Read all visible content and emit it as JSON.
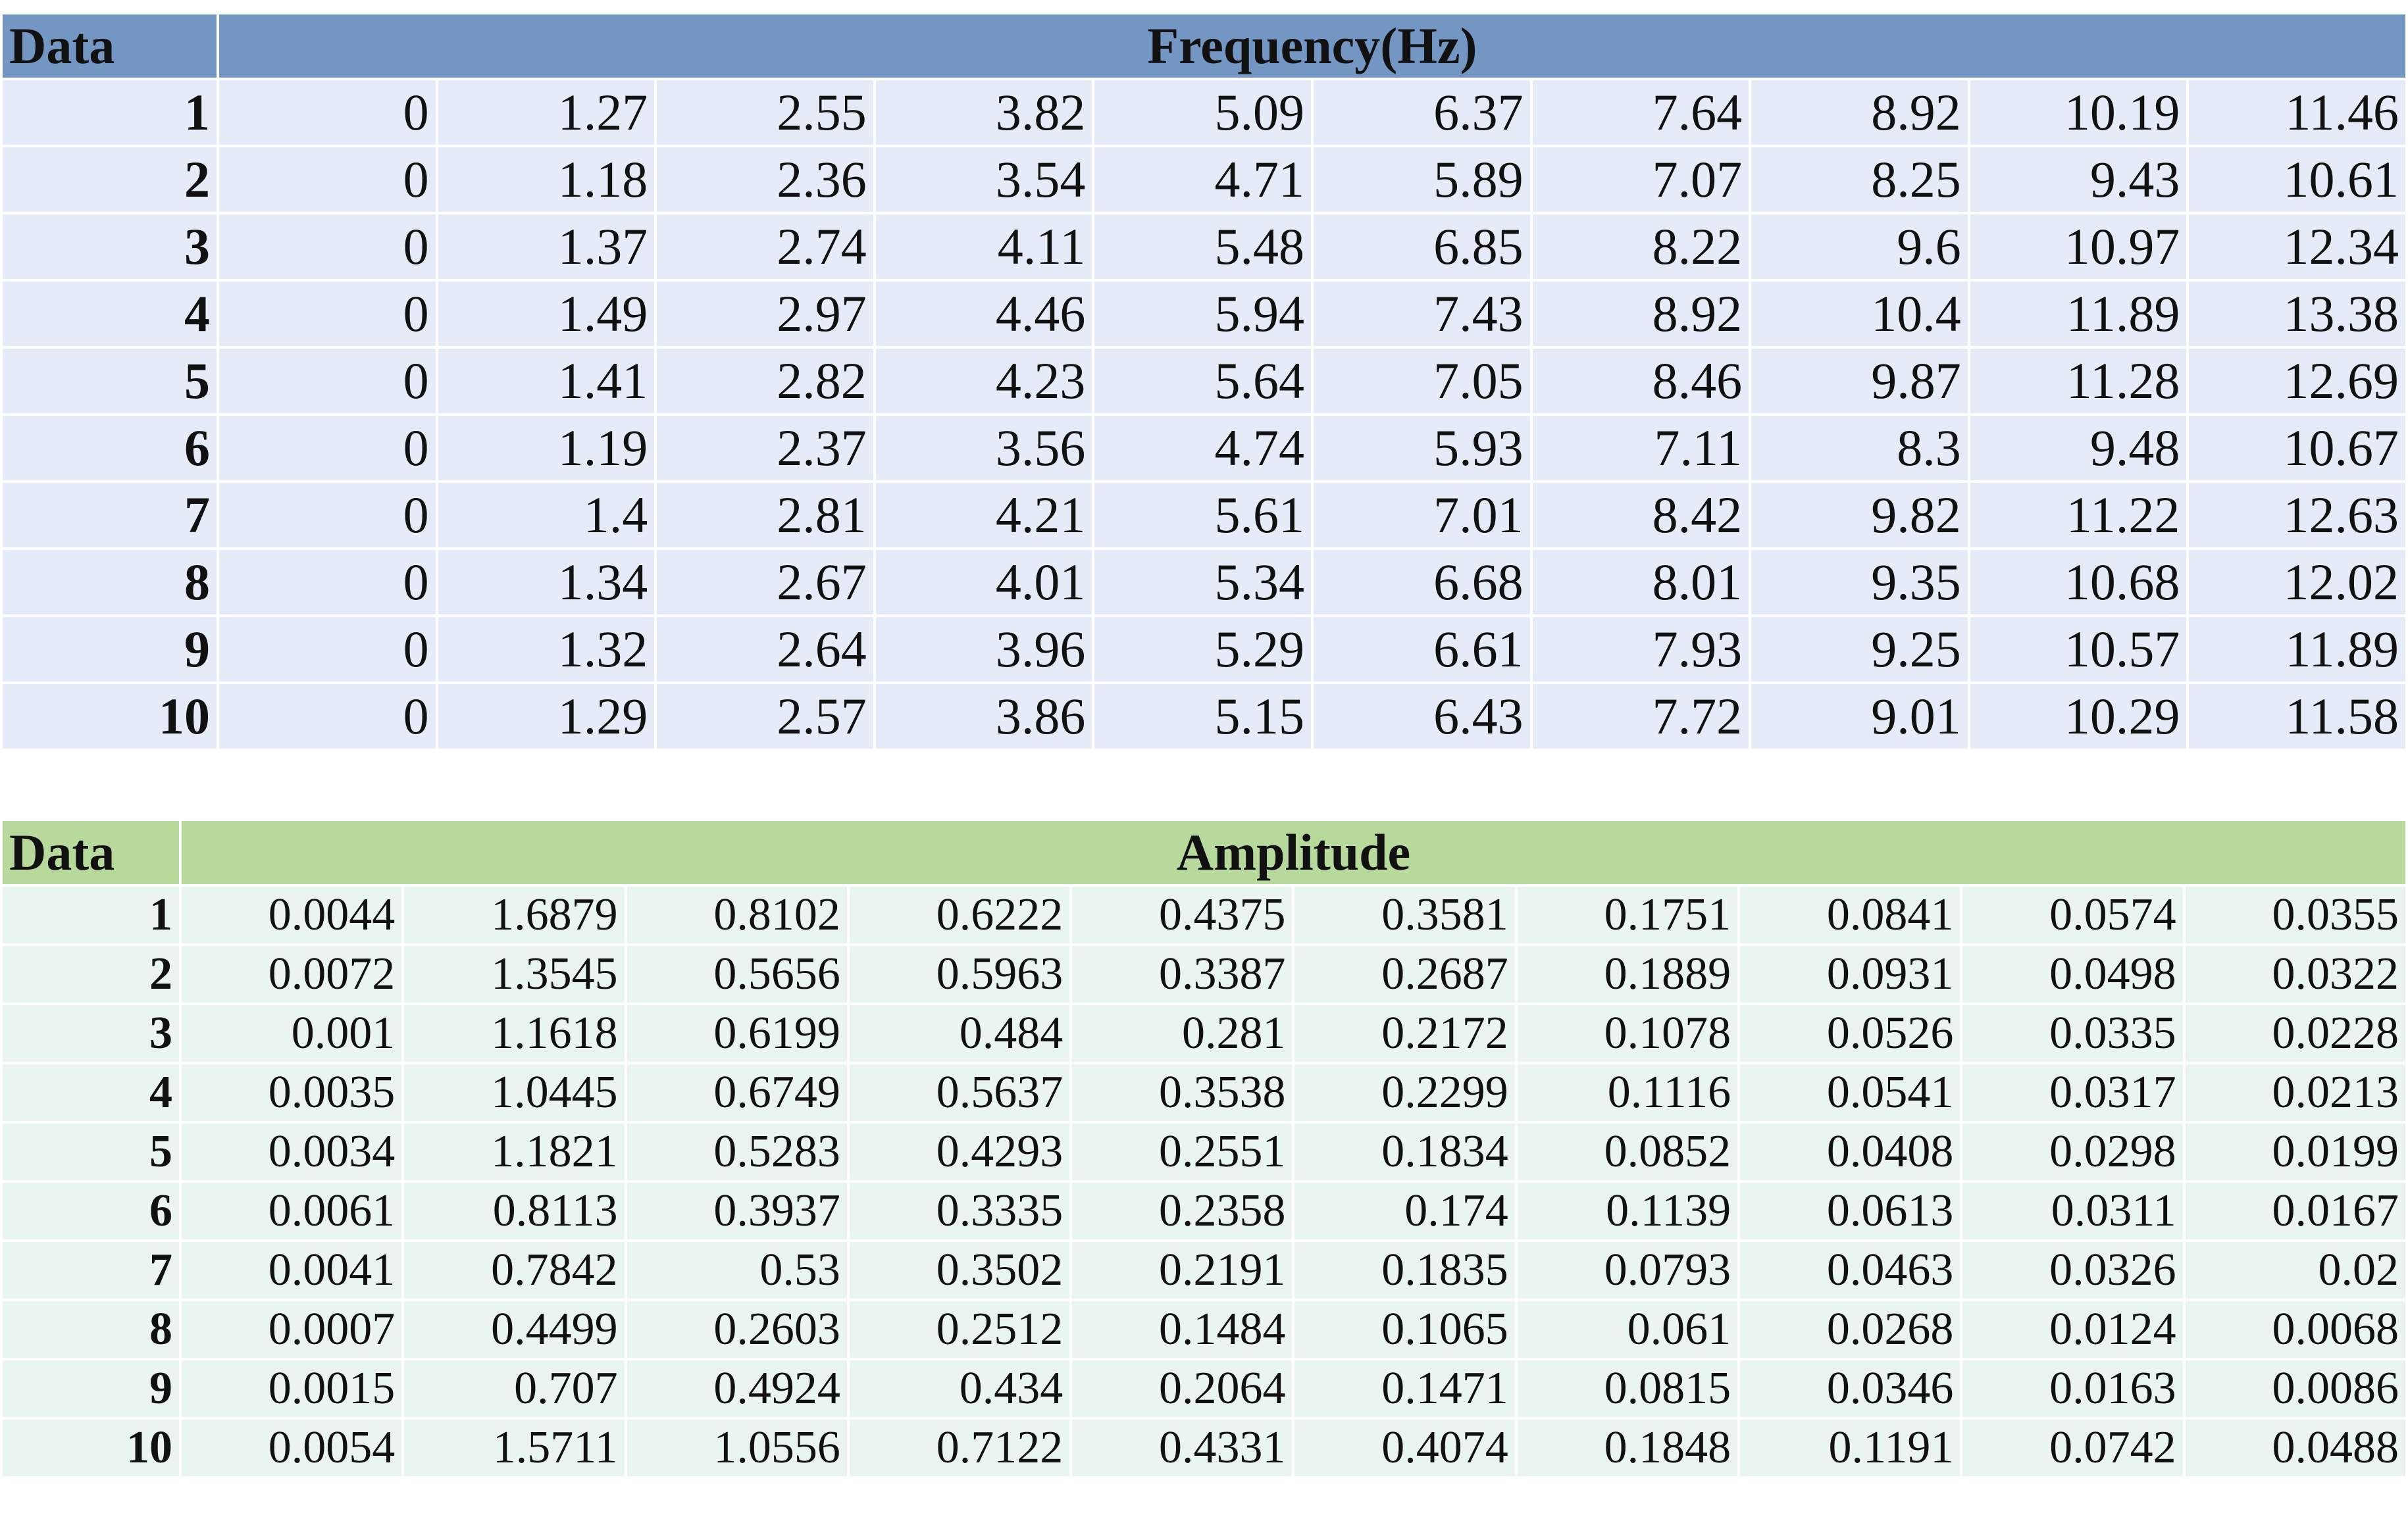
{
  "frequency_table": {
    "header_data": "Data",
    "header_title": "Frequency(Hz)",
    "colors": {
      "header": "#7396c2",
      "cell": "#e5ecf8"
    },
    "rows": [
      {
        "label": "1",
        "values": [
          "0",
          "1.27",
          "2.55",
          "3.82",
          "5.09",
          "6.37",
          "7.64",
          "8.92",
          "10.19",
          "11.46"
        ]
      },
      {
        "label": "2",
        "values": [
          "0",
          "1.18",
          "2.36",
          "3.54",
          "4.71",
          "5.89",
          "7.07",
          "8.25",
          "9.43",
          "10.61"
        ]
      },
      {
        "label": "3",
        "values": [
          "0",
          "1.37",
          "2.74",
          "4.11",
          "5.48",
          "6.85",
          "8.22",
          "9.6",
          "10.97",
          "12.34"
        ]
      },
      {
        "label": "4",
        "values": [
          "0",
          "1.49",
          "2.97",
          "4.46",
          "5.94",
          "7.43",
          "8.92",
          "10.4",
          "11.89",
          "13.38"
        ]
      },
      {
        "label": "5",
        "values": [
          "0",
          "1.41",
          "2.82",
          "4.23",
          "5.64",
          "7.05",
          "8.46",
          "9.87",
          "11.28",
          "12.69"
        ]
      },
      {
        "label": "6",
        "values": [
          "0",
          "1.19",
          "2.37",
          "3.56",
          "4.74",
          "5.93",
          "7.11",
          "8.3",
          "9.48",
          "10.67"
        ]
      },
      {
        "label": "7",
        "values": [
          "0",
          "1.4",
          "2.81",
          "4.21",
          "5.61",
          "7.01",
          "8.42",
          "9.82",
          "11.22",
          "12.63"
        ]
      },
      {
        "label": "8",
        "values": [
          "0",
          "1.34",
          "2.67",
          "4.01",
          "5.34",
          "6.68",
          "8.01",
          "9.35",
          "10.68",
          "12.02"
        ]
      },
      {
        "label": "9",
        "values": [
          "0",
          "1.32",
          "2.64",
          "3.96",
          "5.29",
          "6.61",
          "7.93",
          "9.25",
          "10.57",
          "11.89"
        ]
      },
      {
        "label": "10",
        "values": [
          "0",
          "1.29",
          "2.57",
          "3.86",
          "5.15",
          "6.43",
          "7.72",
          "9.01",
          "10.29",
          "11.58"
        ]
      }
    ]
  },
  "amplitude_table": {
    "header_data": "Data",
    "header_title": "Amplitude",
    "colors": {
      "header": "#b7d99b",
      "cell": "#e9f5ee"
    },
    "rows": [
      {
        "label": "1",
        "values": [
          "0.0044",
          "1.6879",
          "0.8102",
          "0.6222",
          "0.4375",
          "0.3581",
          "0.1751",
          "0.0841",
          "0.0574",
          "0.0355"
        ]
      },
      {
        "label": "2",
        "values": [
          "0.0072",
          "1.3545",
          "0.5656",
          "0.5963",
          "0.3387",
          "0.2687",
          "0.1889",
          "0.0931",
          "0.0498",
          "0.0322"
        ]
      },
      {
        "label": "3",
        "values": [
          "0.001",
          "1.1618",
          "0.6199",
          "0.484",
          "0.281",
          "0.2172",
          "0.1078",
          "0.0526",
          "0.0335",
          "0.0228"
        ]
      },
      {
        "label": "4",
        "values": [
          "0.0035",
          "1.0445",
          "0.6749",
          "0.5637",
          "0.3538",
          "0.2299",
          "0.1116",
          "0.0541",
          "0.0317",
          "0.0213"
        ]
      },
      {
        "label": "5",
        "values": [
          "0.0034",
          "1.1821",
          "0.5283",
          "0.4293",
          "0.2551",
          "0.1834",
          "0.0852",
          "0.0408",
          "0.0298",
          "0.0199"
        ]
      },
      {
        "label": "6",
        "values": [
          "0.0061",
          "0.8113",
          "0.3937",
          "0.3335",
          "0.2358",
          "0.174",
          "0.1139",
          "0.0613",
          "0.0311",
          "0.0167"
        ]
      },
      {
        "label": "7",
        "values": [
          "0.0041",
          "0.7842",
          "0.53",
          "0.3502",
          "0.2191",
          "0.1835",
          "0.0793",
          "0.0463",
          "0.0326",
          "0.02"
        ]
      },
      {
        "label": "8",
        "values": [
          "0.0007",
          "0.4499",
          "0.2603",
          "0.2512",
          "0.1484",
          "0.1065",
          "0.061",
          "0.0268",
          "0.0124",
          "0.0068"
        ]
      },
      {
        "label": "9",
        "values": [
          "0.0015",
          "0.707",
          "0.4924",
          "0.434",
          "0.2064",
          "0.1471",
          "0.0815",
          "0.0346",
          "0.0163",
          "0.0086"
        ]
      },
      {
        "label": "10",
        "values": [
          "0.0054",
          "1.5711",
          "1.0556",
          "0.7122",
          "0.4331",
          "0.4074",
          "0.1848",
          "0.1191",
          "0.0742",
          "0.0488"
        ]
      }
    ]
  }
}
